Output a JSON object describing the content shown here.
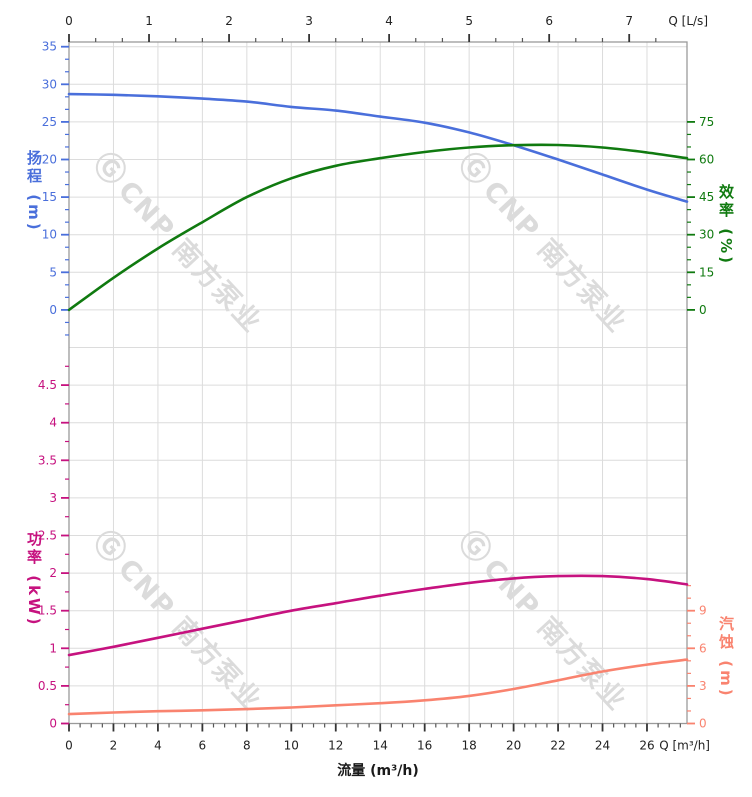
{
  "watermark": {
    "logo": "Ⓖ",
    "text": "CNP 南方泵业"
  },
  "chart_data": {
    "type": "line",
    "title": "",
    "grid": true,
    "legend_position": "none",
    "x_axis_bottom": {
      "axis_label": "流量 (m³/h)",
      "unit_label": "Q [m³/h]",
      "range": [
        0,
        27.8
      ],
      "tick_labels": [
        0,
        2,
        4,
        6,
        8,
        10,
        12,
        14,
        16,
        18,
        20,
        22,
        24,
        26
      ],
      "minor_step": 0.5,
      "minor_range": [
        0,
        27.5
      ],
      "color": "#222222"
    },
    "x_axis_top": {
      "unit_label": "Q [L/s]",
      "range": [
        0,
        7.72
      ],
      "tick_labels": [
        0,
        1,
        2,
        3,
        4,
        5,
        6,
        7
      ],
      "minor_step": 0.3333,
      "minor_range": [
        0,
        7.4
      ],
      "to_m3h": 3.6,
      "color": "#222222"
    },
    "axes": {
      "head": {
        "label": "扬程 (m)",
        "color": "#4a6fdb",
        "range": [
          0,
          35
        ],
        "tick_labels": [
          0,
          5,
          10,
          15,
          20,
          25,
          30,
          35
        ],
        "minor_step": 1.6667,
        "minor_range": [
          -3.333,
          35
        ],
        "side": "left"
      },
      "eff": {
        "label": "效率 (%)",
        "color": "#107a10",
        "range": [
          0,
          75
        ],
        "tick_labels": [
          0,
          15,
          30,
          45,
          60,
          75
        ],
        "minor_step": 5,
        "minor_range": [
          0,
          75
        ],
        "side": "right"
      },
      "power": {
        "label": "功率 (kW)",
        "color": "#c6127f",
        "range": [
          0,
          4.5
        ],
        "tick_labels": [
          0,
          0.5,
          1,
          1.5,
          2,
          2.5,
          3,
          3.5,
          4,
          4.5
        ],
        "minor_step": 0.25,
        "minor_range": [
          0,
          4.75
        ],
        "side": "left"
      },
      "npsh": {
        "label": "汽蚀 (m)",
        "color": "#f9836f",
        "range": [
          0,
          9
        ],
        "tick_labels": [
          0,
          3,
          6,
          9
        ],
        "minor_step": 1,
        "minor_range": [
          0,
          11
        ],
        "side": "right"
      }
    },
    "series": [
      {
        "name": "扬程",
        "axis": "head",
        "color": "#4a6fdb",
        "points": [
          [
            0,
            28.7
          ],
          [
            2,
            28.6
          ],
          [
            4,
            28.4
          ],
          [
            6,
            28.1
          ],
          [
            8,
            27.7
          ],
          [
            10,
            27.0
          ],
          [
            12,
            26.5
          ],
          [
            14,
            25.7
          ],
          [
            16,
            24.9
          ],
          [
            18,
            23.6
          ],
          [
            20,
            21.9
          ],
          [
            22,
            20.0
          ],
          [
            24,
            18.0
          ],
          [
            26,
            16.0
          ],
          [
            27.8,
            14.4
          ]
        ]
      },
      {
        "name": "效率",
        "axis": "eff",
        "color": "#107a10",
        "points": [
          [
            0,
            0
          ],
          [
            2,
            12.8
          ],
          [
            4,
            24.5
          ],
          [
            6,
            35
          ],
          [
            8,
            45
          ],
          [
            10,
            52.5
          ],
          [
            12,
            57.5
          ],
          [
            14,
            60.5
          ],
          [
            16,
            63
          ],
          [
            18,
            64.8
          ],
          [
            20,
            65.7
          ],
          [
            22,
            65.8
          ],
          [
            24,
            64.8
          ],
          [
            26,
            62.8
          ],
          [
            27.8,
            60.5
          ]
        ]
      },
      {
        "name": "功率",
        "axis": "power",
        "color": "#c6127f",
        "points": [
          [
            0,
            0.91
          ],
          [
            2,
            1.02
          ],
          [
            4,
            1.14
          ],
          [
            6,
            1.26
          ],
          [
            8,
            1.38
          ],
          [
            10,
            1.5
          ],
          [
            12,
            1.6
          ],
          [
            14,
            1.7
          ],
          [
            16,
            1.79
          ],
          [
            18,
            1.87
          ],
          [
            20,
            1.93
          ],
          [
            22,
            1.96
          ],
          [
            24,
            1.96
          ],
          [
            26,
            1.92
          ],
          [
            27.8,
            1.85
          ]
        ]
      },
      {
        "name": "汽蚀",
        "axis": "npsh",
        "color": "#f9836f",
        "points": [
          [
            0,
            0.75
          ],
          [
            2,
            0.88
          ],
          [
            4,
            0.98
          ],
          [
            6,
            1.05
          ],
          [
            8,
            1.15
          ],
          [
            10,
            1.28
          ],
          [
            12,
            1.45
          ],
          [
            14,
            1.62
          ],
          [
            16,
            1.85
          ],
          [
            18,
            2.2
          ],
          [
            20,
            2.75
          ],
          [
            22,
            3.45
          ],
          [
            24,
            4.15
          ],
          [
            26,
            4.7
          ],
          [
            27.8,
            5.1
          ]
        ]
      }
    ]
  }
}
